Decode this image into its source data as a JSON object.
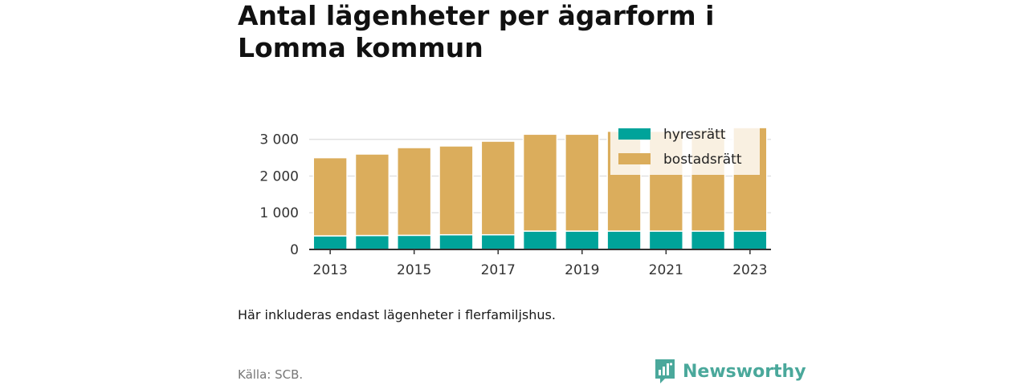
{
  "title": "Antal lägenheter per ägarform i Lomma kommun",
  "note": "Här inkluderas endast lägenheter i flerfamiljshus.",
  "source": "Källa: SCB.",
  "brand": {
    "name": "Newsworthy",
    "icon": "newsworthy-logo-icon"
  },
  "colors": {
    "hyresratt": "#00a39a",
    "bostadsratt": "#dbad5c",
    "axis": "#333333",
    "grid": "#dddddd"
  },
  "chart_data": {
    "type": "bar",
    "stacked": true,
    "categories": [
      "2013",
      "2014",
      "2015",
      "2016",
      "2017",
      "2018",
      "2019",
      "2020",
      "2021",
      "2022",
      "2023"
    ],
    "x_tick_labels": [
      "2013",
      "2015",
      "2017",
      "2019",
      "2021",
      "2023"
    ],
    "series": [
      {
        "name": "hyresrätt",
        "values": [
          370,
          380,
          385,
          400,
          400,
          500,
          500,
          500,
          500,
          500,
          500
        ]
      },
      {
        "name": "bostadsrätt",
        "values": [
          2130,
          2220,
          2390,
          2420,
          2550,
          2640,
          2640,
          2720,
          2720,
          2760,
          2820
        ]
      }
    ],
    "ylim": [
      0,
      3300
    ],
    "y_ticks": [
      0,
      1000,
      2000,
      3000
    ],
    "y_tick_labels": [
      "0",
      "1 000",
      "2 000",
      "3 000"
    ],
    "grid": true,
    "legend_position": "top-right",
    "xlabel": "",
    "ylabel": ""
  }
}
